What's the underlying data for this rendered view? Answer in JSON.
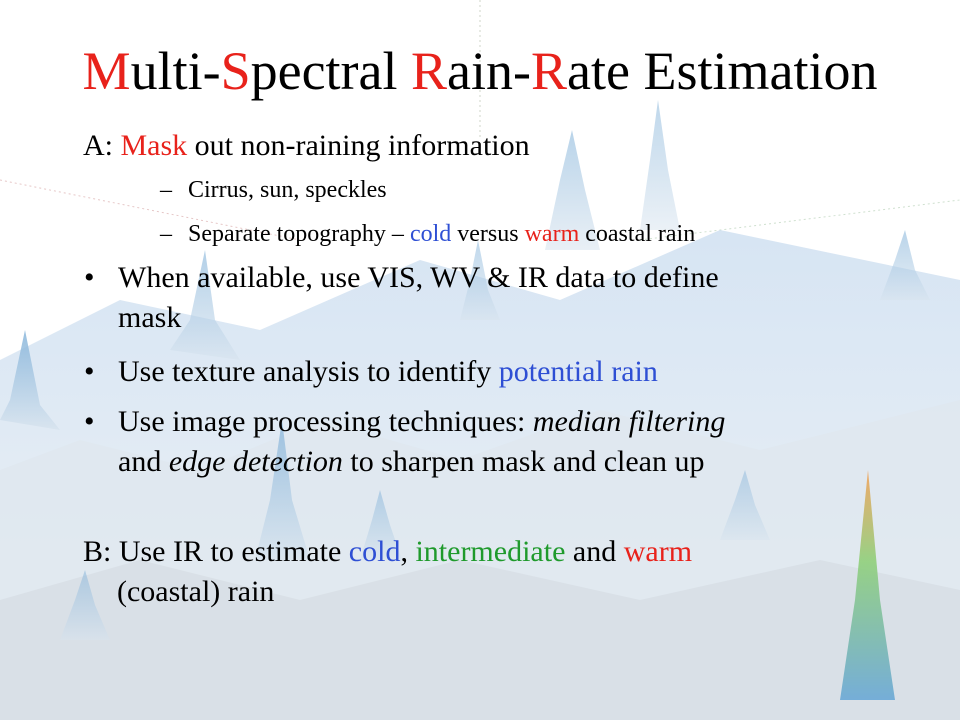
{
  "title": {
    "seg1_red": "M",
    "seg2": "ulti-",
    "seg3_red": "S",
    "seg4": "pectral ",
    "seg5_red": "R",
    "seg6": "ain-",
    "seg7_red": "R",
    "seg8": "ate Estimation"
  },
  "section_a": {
    "prefix": "A: ",
    "mask_red": "Mask",
    "rest": " out non-raining information",
    "sub1": "Cirrus, sun, speckles",
    "sub2": {
      "part1": "Separate topography – ",
      "cold_blue": "cold",
      "part2": " versus ",
      "warm_red": "warm",
      "part3": " coastal rain"
    }
  },
  "bullets": {
    "b1_line1": "When available, use VIS, WV & IR data to define",
    "b1_line2": "mask",
    "b2_text": "Use texture analysis to identify ",
    "b2_blue": "potential rain",
    "b3_line1_text": "Use image processing techniques: ",
    "b3_line1_italic": "median filtering",
    "b3_line2_text1": "and ",
    "b3_line2_italic": "edge detection",
    "b3_line2_text2": " to sharpen mask and clean up"
  },
  "section_b": {
    "prefix": "B: Use IR to estimate ",
    "cold_blue": "cold",
    "comma": ", ",
    "intermediate_green": "intermediate",
    "and": " and ",
    "warm_red": "warm",
    "line2": "(coastal) rain"
  },
  "bullet_glyph": "•",
  "dash_glyph": "–",
  "colors": {
    "accent_red": "#e8221b",
    "accent_blue": "#2e4fd4",
    "accent_green": "#1f9a2c"
  }
}
